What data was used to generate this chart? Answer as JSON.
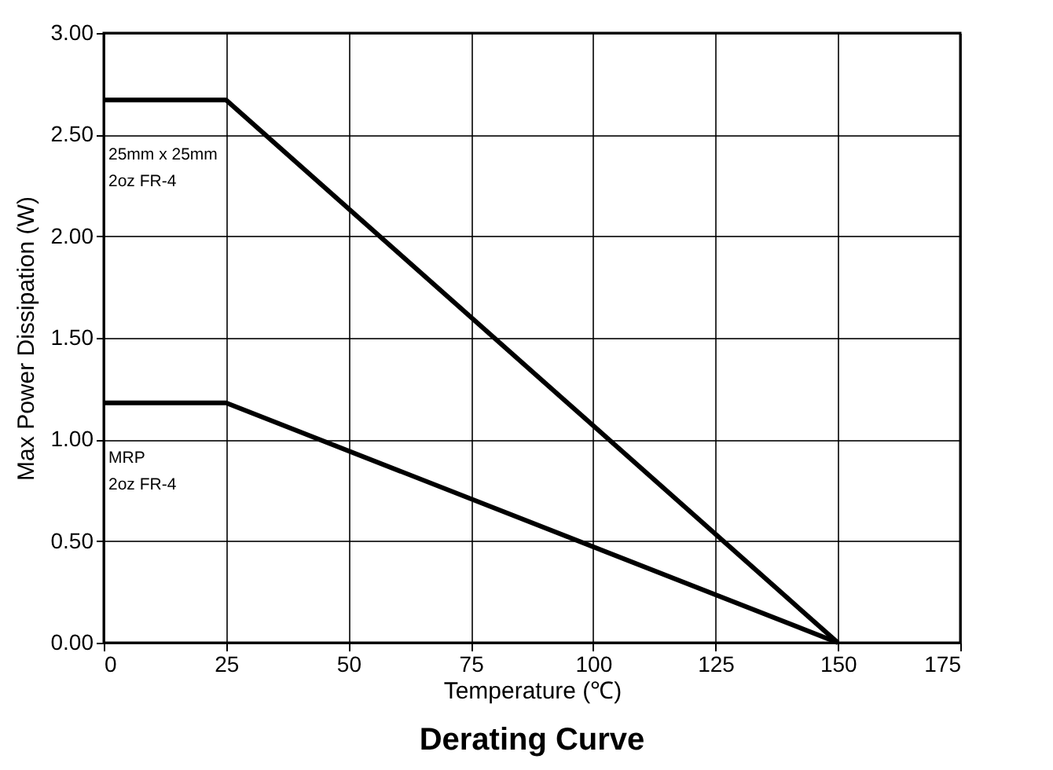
{
  "chart_data": {
    "type": "line",
    "title": "Derating Curve",
    "xlabel": "Temperature (℃)",
    "ylabel": "Max Power Dissipation (W)",
    "x": [
      0,
      25,
      150
    ],
    "series": [
      {
        "name": "25mm x 25mm\n2oz FR-4",
        "color": "#000000",
        "values": [
          2.67,
          2.67,
          0
        ]
      },
      {
        "name": "MRP\n2oz FR-4",
        "color": "#000000",
        "values": [
          1.18,
          1.18,
          0
        ]
      }
    ],
    "xlim": [
      0,
      175
    ],
    "xticks": [
      0,
      25,
      50,
      75,
      100,
      125,
      150,
      175
    ],
    "ylim": [
      0,
      3
    ],
    "yticks": [
      {
        "value": 0,
        "label": "0.00"
      },
      {
        "value": 0.5,
        "label": "0.50"
      },
      {
        "value": 1,
        "label": "1.00"
      },
      {
        "value": 1.5,
        "label": "1.50"
      },
      {
        "value": 2,
        "label": "2.00"
      },
      {
        "value": 2.5,
        "label": "2.50"
      },
      {
        "value": 3,
        "label": "3.00"
      }
    ],
    "grid": true,
    "legend": false,
    "marker": "none",
    "line_style": "solid"
  }
}
